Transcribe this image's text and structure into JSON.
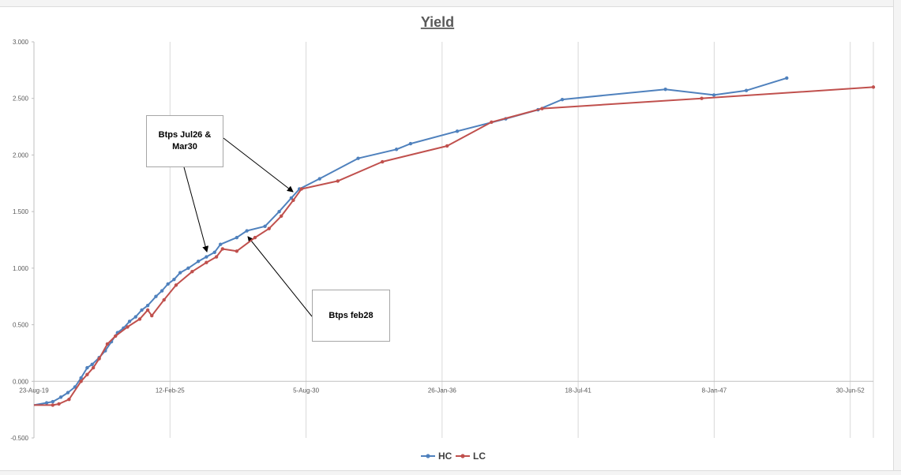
{
  "chart_data": {
    "type": "line",
    "title": "Yield",
    "xlabel": "",
    "ylabel": "",
    "x_axis": {
      "type": "date",
      "range": [
        "2019-08-23",
        "2054-03-28"
      ],
      "tick_labels": [
        "23-Aug-19",
        "12-Feb-25",
        "5-Aug-30",
        "26-Jan-36",
        "18-Jul-41",
        "8-Jan-47",
        "30-Jun-52"
      ]
    },
    "y_axis": {
      "range": [
        -0.5,
        3.0
      ],
      "tick_labels": [
        "-0.500",
        "0.000",
        "0.500",
        "1.000",
        "1.500",
        "2.000",
        "2.500",
        "3.000"
      ]
    },
    "grid": "vertical lines at x ticks",
    "legend": "bottom",
    "series": [
      {
        "name": "HC",
        "color": "#4f81bd",
        "points": [
          [
            "2019-08-23",
            -0.21
          ],
          [
            "2020-03-01",
            -0.19
          ],
          [
            "2020-06-01",
            -0.18
          ],
          [
            "2020-10-01",
            -0.14
          ],
          [
            "2021-01-15",
            -0.1
          ],
          [
            "2021-05-01",
            -0.05
          ],
          [
            "2021-08-01",
            0.03
          ],
          [
            "2021-11-01",
            0.12
          ],
          [
            "2022-01-15",
            0.15
          ],
          [
            "2022-05-01",
            0.21
          ],
          [
            "2022-08-01",
            0.27
          ],
          [
            "2022-11-01",
            0.35
          ],
          [
            "2023-02-01",
            0.43
          ],
          [
            "2023-05-01",
            0.47
          ],
          [
            "2023-08-01",
            0.53
          ],
          [
            "2023-11-01",
            0.57
          ],
          [
            "2024-02-01",
            0.63
          ],
          [
            "2024-05-01",
            0.67
          ],
          [
            "2024-09-01",
            0.75
          ],
          [
            "2024-12-01",
            0.8
          ],
          [
            "2025-03-01",
            0.86
          ],
          [
            "2025-06-01",
            0.9
          ],
          [
            "2025-09-01",
            0.96
          ],
          [
            "2026-01-01",
            1.0
          ],
          [
            "2026-06-01",
            1.06
          ],
          [
            "2026-10-01",
            1.1
          ],
          [
            "2027-02-01",
            1.14
          ],
          [
            "2027-05-01",
            1.21
          ],
          [
            "2028-01-01",
            1.27
          ],
          [
            "2028-06-01",
            1.33
          ],
          [
            "2029-03-01",
            1.37
          ],
          [
            "2029-10-01",
            1.5
          ],
          [
            "2030-04-01",
            1.62
          ],
          [
            "2030-08-01",
            1.7
          ],
          [
            "2031-06-01",
            1.79
          ],
          [
            "2033-01-01",
            1.97
          ],
          [
            "2034-08-01",
            2.05
          ],
          [
            "2035-03-01",
            2.1
          ],
          [
            "2037-02-01",
            2.21
          ],
          [
            "2039-02-01",
            2.32
          ],
          [
            "2040-06-01",
            2.4
          ],
          [
            "2041-06-01",
            2.49
          ],
          [
            "2045-09-01",
            2.58
          ],
          [
            "2047-09-01",
            2.53
          ],
          [
            "2049-01-01",
            2.57
          ],
          [
            "2050-09-01",
            2.68
          ]
        ]
      },
      {
        "name": "LC",
        "color": "#c0504d",
        "points": [
          [
            "2019-08-23",
            -0.21
          ],
          [
            "2020-06-01",
            -0.21
          ],
          [
            "2020-09-01",
            -0.2
          ],
          [
            "2021-02-01",
            -0.16
          ],
          [
            "2021-08-01",
            0.0
          ],
          [
            "2021-11-01",
            0.06
          ],
          [
            "2022-02-01",
            0.12
          ],
          [
            "2022-05-01",
            0.2
          ],
          [
            "2022-09-01",
            0.33
          ],
          [
            "2023-01-01",
            0.4
          ],
          [
            "2023-07-01",
            0.48
          ],
          [
            "2024-01-01",
            0.55
          ],
          [
            "2024-05-01",
            0.63
          ],
          [
            "2024-07-01",
            0.58
          ],
          [
            "2025-01-01",
            0.72
          ],
          [
            "2025-07-01",
            0.85
          ],
          [
            "2026-03-01",
            0.97
          ],
          [
            "2026-10-01",
            1.05
          ],
          [
            "2027-03-01",
            1.1
          ],
          [
            "2027-06-01",
            1.17
          ],
          [
            "2028-01-01",
            1.15
          ],
          [
            "2028-10-01",
            1.27
          ],
          [
            "2029-05-01",
            1.35
          ],
          [
            "2029-11-01",
            1.46
          ],
          [
            "2030-05-01",
            1.6
          ],
          [
            "2030-09-01",
            1.7
          ],
          [
            "2032-03-01",
            1.77
          ],
          [
            "2034-01-01",
            1.94
          ],
          [
            "2036-09-01",
            2.08
          ],
          [
            "2038-07-01",
            2.29
          ],
          [
            "2040-08-01",
            2.41
          ],
          [
            "2047-03-01",
            2.5
          ],
          [
            "2054-03-28",
            2.6
          ]
        ]
      }
    ],
    "annotations": [
      {
        "text": "Btps Jul26 & Mar30"
      },
      {
        "text": "Btps feb28"
      }
    ]
  }
}
